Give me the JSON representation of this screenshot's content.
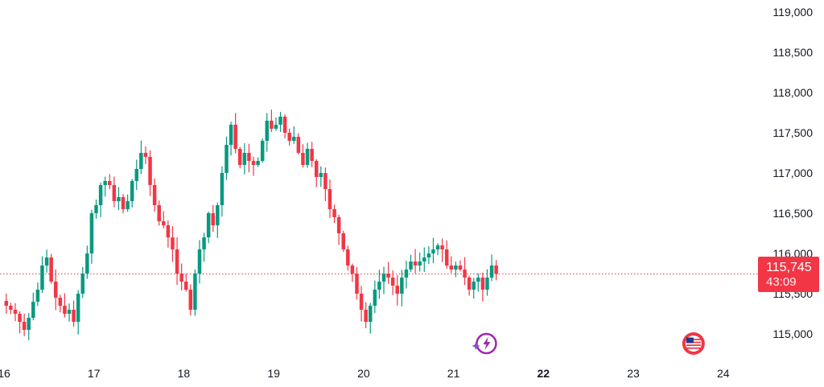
{
  "chart_data": {
    "type": "candlestick",
    "title": "",
    "xlabel": "",
    "ylabel": "",
    "ylim": [
      114650,
      119150
    ],
    "y_ticks": [
      115000,
      115500,
      116000,
      116500,
      117000,
      117500,
      118000,
      118500,
      119000
    ],
    "y_tick_labels": [
      "115,000",
      "115,500",
      "116,000",
      "116,500",
      "117,000",
      "117,500",
      "118,000",
      "118,500",
      "119,000"
    ],
    "x_ticks": [
      {
        "day": 16,
        "label": "16",
        "bold": false
      },
      {
        "day": 17,
        "label": "17",
        "bold": false
      },
      {
        "day": 18,
        "label": "18",
        "bold": false
      },
      {
        "day": 19,
        "label": "19",
        "bold": false
      },
      {
        "day": 20,
        "label": "20",
        "bold": false
      },
      {
        "day": 21,
        "label": "21",
        "bold": false
      },
      {
        "day": 22,
        "label": "22",
        "bold": true
      },
      {
        "day": 23,
        "label": "23",
        "bold": false
      },
      {
        "day": 24,
        "label": "24",
        "bold": false
      }
    ],
    "xlim": [
      16,
      24.45
    ],
    "current_price": 115745,
    "current_price_label": "115,745",
    "countdown": "43:09",
    "colors": {
      "up": "#089981",
      "down": "#f23645",
      "price_line": "#f23645",
      "event_icon": "#9c27b0",
      "flag_red": "#f23645"
    },
    "events": [
      {
        "day": 21.33,
        "icon": "lightning-event-icon"
      },
      {
        "day": 23.67,
        "icon": "us-flag-event-icon"
      }
    ],
    "closes": [
      115350,
      115300,
      115250,
      115150,
      115050,
      115200,
      115400,
      115550,
      115850,
      115950,
      115650,
      115450,
      115350,
      115250,
      115300,
      115150,
      115500,
      115750,
      116000,
      116500,
      116600,
      116850,
      116900,
      116850,
      116650,
      116700,
      116550,
      116650,
      116900,
      117050,
      117250,
      117200,
      116850,
      116600,
      116400,
      116350,
      116200,
      116050,
      115750,
      115650,
      115550,
      115300,
      115750,
      116050,
      116200,
      116500,
      116350,
      116600,
      117000,
      117350,
      117600,
      117300,
      117100,
      117250,
      117150,
      117100,
      117150,
      117400,
      117650,
      117550,
      117600,
      117700,
      117500,
      117400,
      117450,
      117250,
      117100,
      117300,
      117150,
      116950,
      117000,
      116800,
      116550,
      116450,
      116250,
      116050,
      115850,
      115750,
      115500,
      115300,
      115150,
      115350,
      115550,
      115650,
      115750,
      115700,
      115600,
      115500,
      115700,
      115800,
      115900,
      115850,
      115900,
      115950,
      116000,
      116050,
      116100,
      116050,
      115850,
      115800,
      115850,
      115800,
      115700,
      115550,
      115650,
      115700,
      115550,
      115700,
      115850,
      115745
    ]
  }
}
